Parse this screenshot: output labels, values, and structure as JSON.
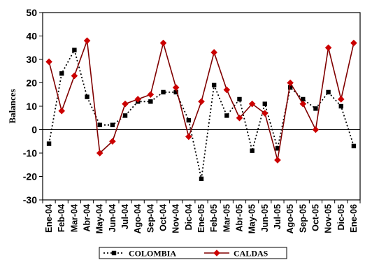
{
  "chart_data": {
    "type": "line",
    "ylabel": "Balances",
    "xlabel": "",
    "ylim": [
      -30,
      50
    ],
    "yticks": [
      -30,
      -20,
      -10,
      0,
      10,
      20,
      30,
      40,
      50
    ],
    "grid": false,
    "legend_position": "bottom",
    "categories": [
      "Ene-04",
      "Feb-04",
      "Mar-04",
      "Abr-04",
      "May-04",
      "Jun-04",
      "Jul-04",
      "Ago-04",
      "Sep-04",
      "Oct-04",
      "Nov-04",
      "Dic-04",
      "Ene-05",
      "Feb-05",
      "Mar-05",
      "Abr-05",
      "May-05",
      "Jun-05",
      "Jul-05",
      "Ago-05",
      "Sep-05",
      "Oct-05",
      "Nov-05",
      "Dic-05",
      "Ene-06"
    ],
    "series": [
      {
        "name": "COLOMBIA",
        "color": "#000000",
        "line_style": "dotted",
        "marker": "square",
        "values": [
          -6,
          24,
          34,
          14,
          2,
          2,
          6,
          12,
          12,
          16,
          16,
          4,
          -21,
          19,
          6,
          13,
          -9,
          11,
          -8,
          18,
          13,
          9,
          16,
          10,
          -7
        ]
      },
      {
        "name": "CALDAS",
        "color": "#cc0000",
        "line_color": "#800000",
        "line_style": "solid",
        "marker": "diamond",
        "values": [
          29,
          8,
          23,
          38,
          -10,
          -5,
          11,
          13,
          15,
          37,
          18,
          -3,
          12,
          33,
          17,
          5,
          11,
          7,
          -13,
          20,
          11,
          0,
          35,
          13,
          37
        ]
      }
    ]
  }
}
